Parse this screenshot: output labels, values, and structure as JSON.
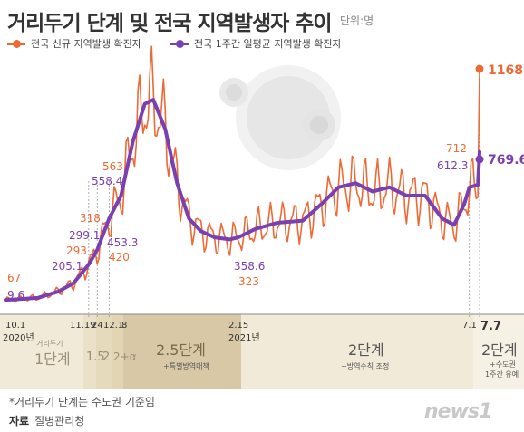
{
  "title": "거리두기 단계 및 전국 지역발생자 추이",
  "unit": "단위:명",
  "note": "*거리두기 단계는 수도권 기준임",
  "source_label": "자료",
  "source": "질병관리청",
  "logo": "news1",
  "colors": {
    "daily": "#ee6a35",
    "avg": "#7a3fb0",
    "stage_dark": "#d8c8a6",
    "stage_light": "#f1ead8"
  },
  "chart_data": {
    "type": "line",
    "series": [
      {
        "name": "전국 신규 지역발생 확진자",
        "color": "#ee6a35",
        "points": [
          {
            "date": "2020-10-01",
            "value": 67
          },
          {
            "date": "2020-11-19",
            "value": 293
          },
          {
            "date": "2020-11-24",
            "value": 318
          },
          {
            "date": "2020-12-01",
            "value": 420
          },
          {
            "date": "2020-12-08",
            "value": 563
          },
          {
            "date": "2021-02-15",
            "value": 323
          },
          {
            "date": "2021-07-06",
            "value": 712
          },
          {
            "date": "2021-07-07",
            "value": 1168
          }
        ]
      },
      {
        "name": "전국 1주간 일평균 지역발생 확진자",
        "color": "#7a3fb0",
        "points": [
          {
            "date": "2020-10-01",
            "value": 9.6
          },
          {
            "date": "2020-11-19",
            "value": 205.1
          },
          {
            "date": "2020-11-24",
            "value": 299.1
          },
          {
            "date": "2020-12-01",
            "value": 453.3
          },
          {
            "date": "2020-12-08",
            "value": 558.4
          },
          {
            "date": "2021-02-15",
            "value": 358.6
          },
          {
            "date": "2021-07-06",
            "value": 612.3
          },
          {
            "date": "2021-07-07",
            "value": 769.6
          }
        ]
      }
    ],
    "value_labels": [
      {
        "text": "67",
        "series": 0
      },
      {
        "text": "9.6",
        "series": 1
      },
      {
        "text": "293",
        "series": 0
      },
      {
        "text": "205.1",
        "series": 1
      },
      {
        "text": "318",
        "series": 0
      },
      {
        "text": "299.1",
        "series": 1
      },
      {
        "text": "453.3",
        "series": 1
      },
      {
        "text": "420",
        "series": 0
      },
      {
        "text": "563",
        "series": 0
      },
      {
        "text": "558.4",
        "series": 1
      },
      {
        "text": "358.6",
        "series": 1
      },
      {
        "text": "323",
        "series": 0
      },
      {
        "text": "712",
        "series": 0
      },
      {
        "text": "612.3",
        "series": 1
      },
      {
        "text": "1168",
        "series": 0
      },
      {
        "text": "769.6",
        "series": 1
      }
    ],
    "x_ticks": [
      "10.1",
      "11.19",
      "24",
      "12.1",
      "8",
      "2.15",
      "7.1",
      "7.7"
    ],
    "years": [
      "2020년",
      "2021년"
    ],
    "stages": [
      {
        "prefix": "거리두기",
        "label": "1단계",
        "sub": ""
      },
      {
        "prefix": "",
        "label": "1.5",
        "sub": ""
      },
      {
        "prefix": "",
        "label": "2",
        "sub": ""
      },
      {
        "prefix": "",
        "label": "2+α",
        "sub": ""
      },
      {
        "prefix": "",
        "label": "2.5단계",
        "sub": "+특별방역대책"
      },
      {
        "prefix": "",
        "label": "2단계",
        "sub": "+방역수칙 조정"
      },
      {
        "prefix": "",
        "label": "2단계",
        "sub": "+수도권\n1주간 유예"
      }
    ],
    "grid": false,
    "legend_position": "top-left"
  }
}
